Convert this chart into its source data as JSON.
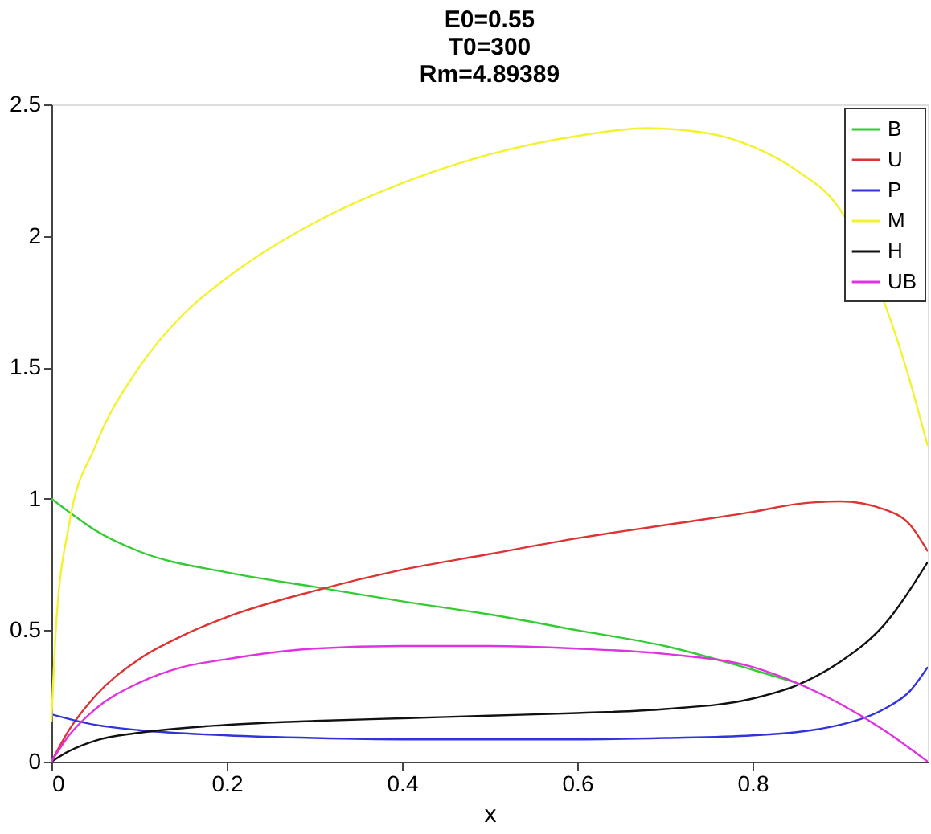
{
  "chart_data": {
    "type": "line",
    "title": "E0=0.55\nT0=300\nRm=4.89389",
    "xlabel": "x",
    "xlim": [
      0,
      1
    ],
    "ylim": [
      0,
      2.5
    ],
    "xticks": [
      0,
      0.2,
      0.4,
      0.6,
      0.8
    ],
    "yticks": [
      0,
      0.5,
      1,
      1.5,
      2,
      2.5
    ],
    "grid": false,
    "legend": "top right",
    "line_style": "solid",
    "marker": "none",
    "series": [
      {
        "name": "B",
        "color": "#33cc33",
        "x": [
          0,
          0.02,
          0.05,
          0.1,
          0.2,
          0.3,
          0.4,
          0.5,
          0.6,
          0.7,
          0.8,
          0.85
        ],
        "values": [
          1,
          0.95,
          0.88,
          0.8,
          0.72,
          0.665,
          0.61,
          0.56,
          0.5,
          0.44,
          0.35,
          0.3
        ]
      },
      {
        "name": "U",
        "color": "#dd3333",
        "x": [
          0,
          0.02,
          0.05,
          0.1,
          0.15,
          0.2,
          0.3,
          0.4,
          0.5,
          0.6,
          0.7,
          0.8,
          0.85,
          0.9,
          0.95,
          0.98,
          1
        ],
        "values": [
          0,
          0.12,
          0.25,
          0.39,
          0.48,
          0.55,
          0.65,
          0.73,
          0.79,
          0.85,
          0.9,
          0.95,
          0.98,
          0.99,
          0.96,
          0.9,
          0.8
        ]
      },
      {
        "name": "P",
        "color": "#3333dd",
        "x": [
          0,
          0.05,
          0.1,
          0.2,
          0.3,
          0.4,
          0.5,
          0.6,
          0.7,
          0.8,
          0.9,
          0.95,
          0.98,
          1
        ],
        "values": [
          0.18,
          0.14,
          0.12,
          0.1,
          0.09,
          0.085,
          0.085,
          0.085,
          0.09,
          0.1,
          0.14,
          0.2,
          0.27,
          0.36
        ]
      },
      {
        "name": "M",
        "color": "#f2f230",
        "x": [
          0,
          0.005,
          0.02,
          0.05,
          0.1,
          0.15,
          0.2,
          0.3,
          0.4,
          0.5,
          0.6,
          0.68,
          0.75,
          0.8,
          0.85,
          0.9,
          0.975,
          1
        ],
        "values": [
          0.15,
          0.5,
          0.9,
          1.2,
          1.5,
          1.7,
          1.84,
          2.05,
          2.2,
          2.31,
          2.38,
          2.41,
          2.39,
          2.34,
          2.25,
          2.1,
          1.5,
          1.2
        ]
      },
      {
        "name": "H",
        "color": "#111111",
        "x": [
          0,
          0.02,
          0.05,
          0.1,
          0.2,
          0.3,
          0.4,
          0.5,
          0.6,
          0.7,
          0.8,
          0.85,
          0.9,
          0.95,
          1
        ],
        "values": [
          0,
          0.04,
          0.08,
          0.11,
          0.14,
          0.155,
          0.165,
          0.175,
          0.185,
          0.2,
          0.24,
          0.29,
          0.38,
          0.52,
          0.76
        ]
      },
      {
        "name": "UB",
        "color": "#e033e0",
        "x": [
          0,
          0.02,
          0.05,
          0.1,
          0.15,
          0.2,
          0.3,
          0.4,
          0.5,
          0.6,
          0.7,
          0.8,
          0.85,
          0.9,
          0.95,
          1
        ],
        "values": [
          0,
          0.1,
          0.2,
          0.3,
          0.36,
          0.39,
          0.43,
          0.44,
          0.44,
          0.43,
          0.41,
          0.36,
          0.3,
          0.22,
          0.12,
          0
        ]
      }
    ]
  }
}
